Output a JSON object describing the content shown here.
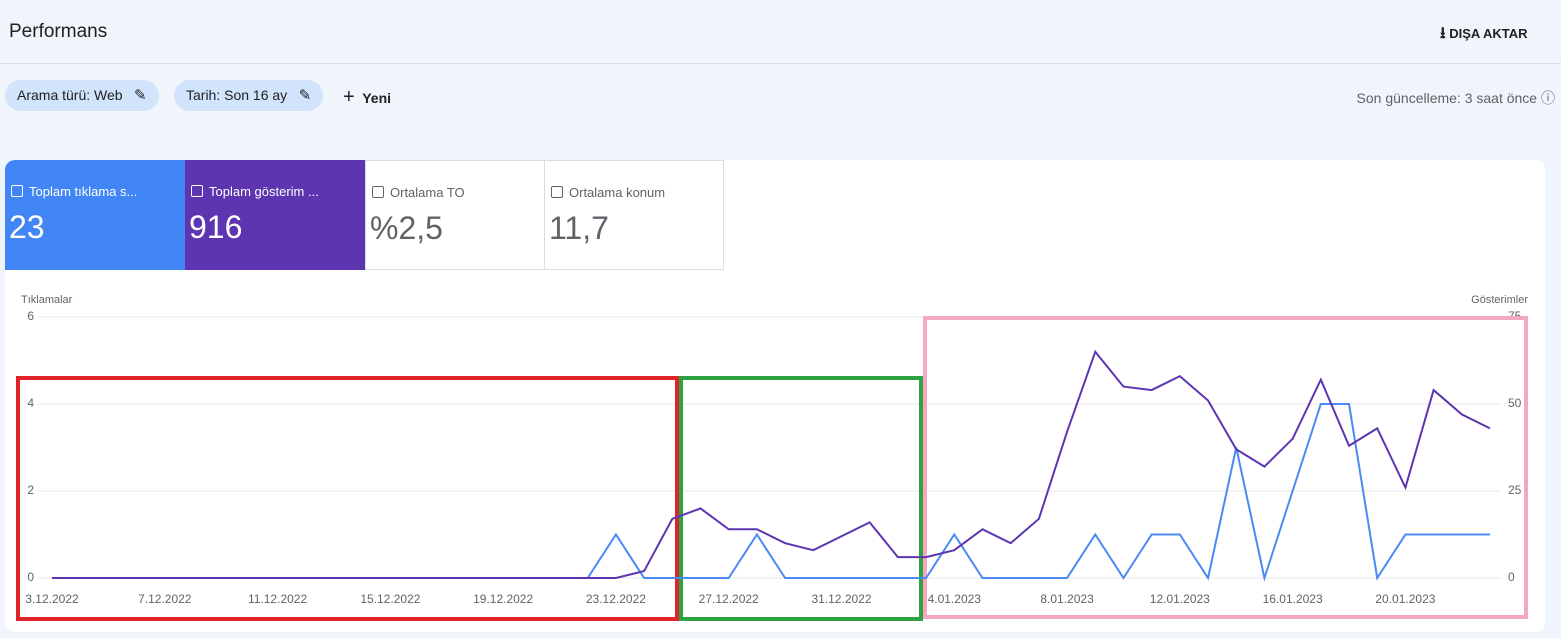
{
  "header": {
    "title": "Performans",
    "export": "DIŞA AKTAR"
  },
  "filters": {
    "items": [
      "Arama türü: Web",
      "Tarih: Son 16 ay"
    ],
    "new": "Yeni",
    "last_update": "Son güncelleme: 3 saat önce"
  },
  "metrics": [
    {
      "label": "Toplam tıklama s...",
      "value": "23"
    },
    {
      "label": "Toplam gösterim ...",
      "value": "916"
    },
    {
      "label": "Ortalama TO",
      "value": "%2,5"
    },
    {
      "label": "Ortalama konum",
      "value": "11,7"
    }
  ],
  "chart_data": {
    "type": "line",
    "y_label": "Tıklamalar",
    "y2_label": "Gösterimler",
    "categories": [
      "3.12.2022",
      null,
      null,
      null,
      "7.12.2022",
      null,
      null,
      null,
      "11.12.2022",
      null,
      null,
      null,
      "15.12.2022",
      null,
      null,
      null,
      "19.12.2022",
      null,
      null,
      null,
      "23.12.2022",
      null,
      null,
      null,
      "27.12.2022",
      null,
      null,
      null,
      "31.12.2022",
      null,
      null,
      null,
      "4.01.2023",
      null,
      null,
      null,
      "8.01.2023",
      null,
      null,
      null,
      "12.01.2023",
      null,
      null,
      null,
      "16.01.2023",
      null,
      null,
      null,
      "20.01.2023",
      null,
      null,
      null
    ],
    "series": [
      {
        "color": "#4a8af4",
        "values": [
          0,
          0,
          0,
          0,
          0,
          0,
          0,
          0,
          0,
          0,
          0,
          0,
          0,
          0,
          0,
          0,
          0,
          0,
          0,
          0,
          1,
          0,
          0,
          0,
          0,
          1,
          0,
          0,
          0,
          0,
          0,
          0,
          1,
          0,
          0,
          0,
          0,
          1,
          0,
          1,
          1,
          0,
          3,
          0,
          2,
          4,
          4,
          0,
          1,
          1,
          1,
          1
        ]
      },
      {
        "color": "#5e35b1",
        "axis": "y2",
        "values": [
          0,
          0,
          0,
          0,
          0,
          0,
          0,
          0,
          0,
          0,
          0,
          0,
          0,
          0,
          0,
          0,
          0,
          0,
          0,
          0,
          0,
          2,
          17,
          20,
          14,
          14,
          10,
          8,
          12,
          16,
          6,
          6,
          8,
          14,
          10,
          17,
          42,
          65,
          55,
          54,
          58,
          51,
          37,
          32,
          40,
          57,
          38,
          43,
          26,
          54,
          47,
          43
        ]
      }
    ],
    "ylim": [
      0,
      6
    ],
    "yticks": [
      0,
      2,
      4,
      6
    ],
    "y2lim": [
      0,
      75
    ],
    "y2ticks": [
      0,
      25,
      50,
      75
    ],
    "grid": true
  }
}
